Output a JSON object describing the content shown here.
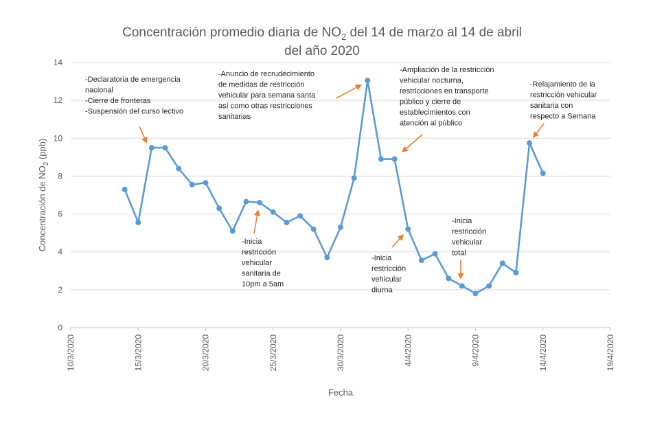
{
  "chart_data": {
    "type": "line",
    "title_part1": "Concentración promedio diaria de NO",
    "title_sub": "2",
    "title_part2": " del 14 de marzo al 14 de abril",
    "title_line2": "del año 2020",
    "xlabel": "Fecha",
    "ylabel_part1": "Concentración de NO",
    "ylabel_sub": "2",
    "ylabel_part2": " (ppb)",
    "ylim": [
      0,
      14
    ],
    "yticks": [
      "0",
      "2",
      "4",
      "6",
      "8",
      "10",
      "12",
      "14"
    ],
    "xlim": [
      "2020-03-10",
      "2020-04-19"
    ],
    "xticks": [
      {
        "date": "2020-03-10",
        "label": "10/3/2020"
      },
      {
        "date": "2020-03-15",
        "label": "15/3/2020"
      },
      {
        "date": "2020-03-20",
        "label": "20/3/2020"
      },
      {
        "date": "2020-03-25",
        "label": "25/3/2020"
      },
      {
        "date": "2020-03-30",
        "label": "30/3/2020"
      },
      {
        "date": "2020-04-04",
        "label": "4/4/2020"
      },
      {
        "date": "2020-04-09",
        "label": "9/4/2020"
      },
      {
        "date": "2020-04-14",
        "label": "14/4/2020"
      },
      {
        "date": "2020-04-19",
        "label": "19/4/2020"
      }
    ],
    "grid": true,
    "series": [
      {
        "color": "#5b9bd5",
        "x": [
          "2020-03-14",
          "2020-03-15",
          "2020-03-16",
          "2020-03-17",
          "2020-03-18",
          "2020-03-19",
          "2020-03-20",
          "2020-03-21",
          "2020-03-22",
          "2020-03-23",
          "2020-03-24",
          "2020-03-25",
          "2020-03-26",
          "2020-03-27",
          "2020-03-28",
          "2020-03-29",
          "2020-03-30",
          "2020-03-31",
          "2020-04-01",
          "2020-04-02",
          "2020-04-03",
          "2020-04-04",
          "2020-04-05",
          "2020-04-06",
          "2020-04-07",
          "2020-04-08",
          "2020-04-09",
          "2020-04-10",
          "2020-04-11",
          "2020-04-12",
          "2020-04-13",
          "2020-04-14"
        ],
        "y": [
          7.3,
          5.55,
          9.5,
          9.5,
          8.4,
          7.55,
          7.65,
          6.3,
          5.1,
          6.65,
          6.6,
          6.1,
          5.55,
          5.9,
          5.2,
          3.7,
          5.3,
          7.9,
          13.05,
          8.9,
          8.9,
          5.2,
          3.55,
          3.9,
          2.6,
          2.2,
          1.8,
          2.2,
          3.4,
          2.9,
          9.75,
          8.15
        ]
      }
    ],
    "annotations": [
      {
        "lines": [
          "-Declaratoria de emergencia",
          "nacional",
          "-Cierre de fronteras",
          "-Suspensión del curso lectivo"
        ]
      },
      {
        "lines": [
          "-Anuncio de recrudecimiento",
          "de medidas de restricción",
          "vehicular para semana santa",
          "así como otras restricciones",
          "sanitarias"
        ]
      },
      {
        "lines": [
          "-Ampliación de la restricción",
          "vehicular  nocturna,",
          "restricciones en transporte",
          "público y cierre de",
          "establecimientos con",
          "atención al público"
        ]
      },
      {
        "lines": [
          "-Relajamiento de la",
          "restricción vehicular",
          "sanitaria con",
          "respecto a Semana"
        ]
      },
      {
        "lines": [
          "-Inicia",
          "restricción",
          "vehicular",
          "sanitaria de",
          "10pm a 5am"
        ]
      },
      {
        "lines": [
          "-Inicia",
          "restricción",
          "vehicular",
          "diurna"
        ]
      },
      {
        "lines": [
          "-Inicia",
          "restricción",
          "vehicular",
          "total"
        ]
      }
    ],
    "arrow_color": "#ed7d31"
  }
}
